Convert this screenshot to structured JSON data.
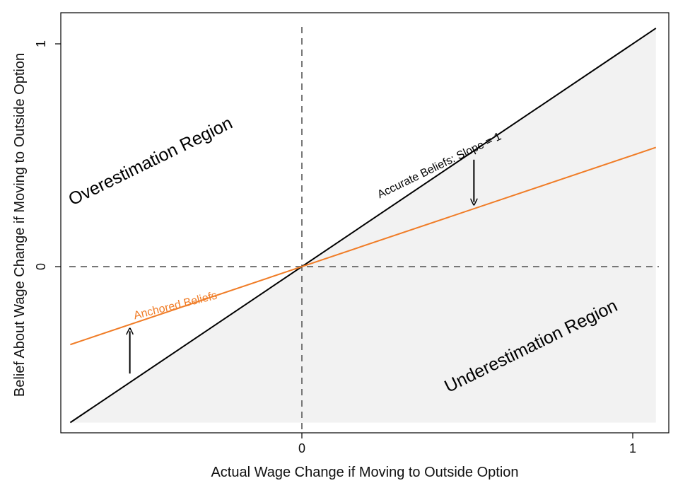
{
  "chart_data": {
    "type": "line",
    "xlabel": "Actual Wage Change if Moving to Outside Option",
    "ylabel": "Belief About Wage Change if Moving to Outside Option",
    "xlim": [
      -0.7,
      1.1
    ],
    "ylim": [
      -0.75,
      1.1
    ],
    "x_ticks": [
      {
        "value": 0,
        "label": "0"
      },
      {
        "value": 1,
        "label": "1"
      }
    ],
    "y_ticks": [
      {
        "value": 0,
        "label": "0"
      },
      {
        "value": 1,
        "label": "1"
      }
    ],
    "grid": false,
    "reference_lines": [
      {
        "axis": "x",
        "value": 0,
        "style": "dashed"
      },
      {
        "axis": "y",
        "value": 0,
        "style": "dashed"
      }
    ],
    "series": [
      {
        "name": "Accurate Beliefs: Slope = 1",
        "color": "#000000",
        "x": [
          -0.7,
          1.07
        ],
        "y": [
          -0.7,
          1.07
        ]
      },
      {
        "name": "Anchored Beliefs",
        "color": "#f07c26",
        "x": [
          -0.7,
          1.07
        ],
        "y": [
          -0.35,
          0.535
        ]
      }
    ],
    "shaded_region": {
      "label": "Underestimation Region",
      "color": "#f2f2f2",
      "x_range": [
        -0.7,
        1.07
      ]
    },
    "annotations": [
      {
        "text": "Overestimation Region",
        "x": -0.45,
        "y": 0.45,
        "angle": -26,
        "color": "#000000",
        "size": "large"
      },
      {
        "text": "Underestimation Region",
        "x": 0.7,
        "y": -0.38,
        "angle": -26,
        "color": "#000000",
        "size": "large"
      },
      {
        "text": "Accurate Beliefs: Slope = 1",
        "x": 0.42,
        "y": 0.44,
        "angle": -26,
        "color": "#000000",
        "size": "small"
      },
      {
        "text": "Anchored Beliefs",
        "x": -0.38,
        "y": -0.19,
        "angle": -14,
        "color": "#f07c26",
        "size": "small"
      }
    ],
    "arrows": [
      {
        "x": 0.52,
        "from_y": 0.48,
        "to_y": 0.29,
        "direction": "down"
      },
      {
        "x": -0.52,
        "from_y": -0.48,
        "to_y": -0.29,
        "direction": "up"
      }
    ]
  }
}
